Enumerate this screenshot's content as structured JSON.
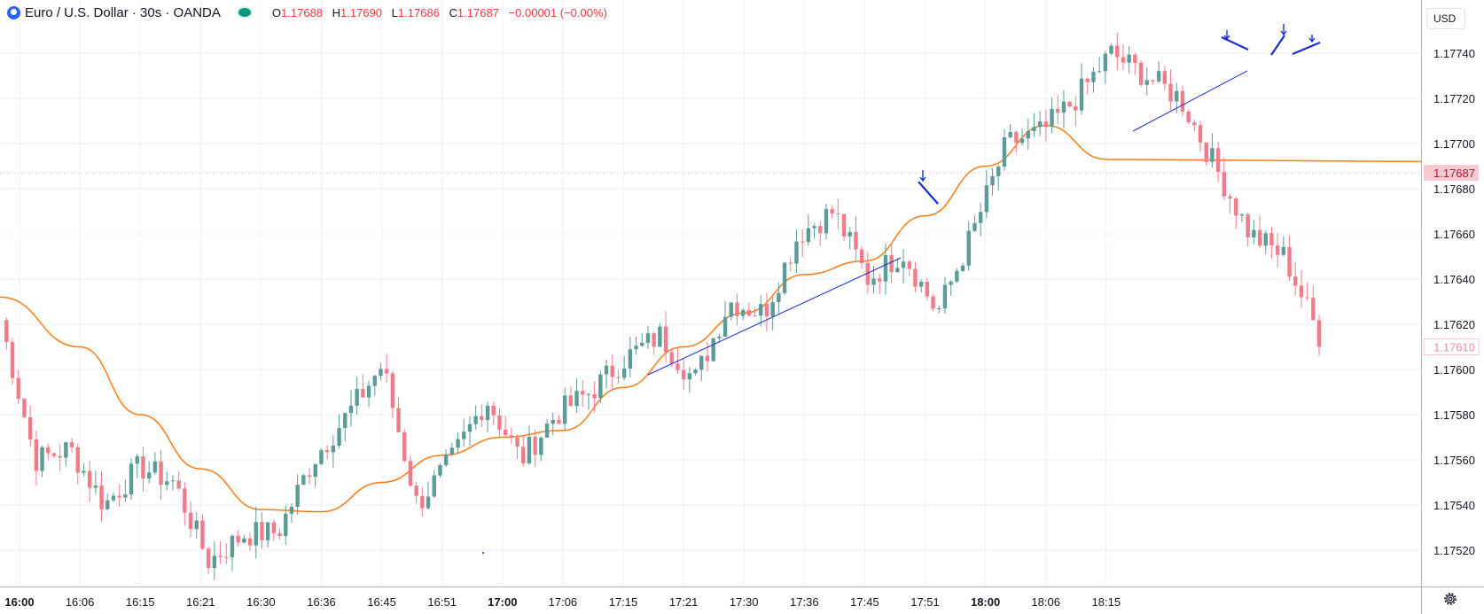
{
  "symbol": {
    "title": "Euro / U.S. Dollar · 30s · OANDA",
    "open_label": "O",
    "open": "1.17688",
    "high_label": "H",
    "high": "1.17690",
    "low_label": "L",
    "low": "1.17686",
    "close_label": "C",
    "close": "1.17687",
    "change": "−0.00001 (−0.00%)"
  },
  "currency_button": "USD",
  "price_axis": {
    "labels": [
      "1.17740",
      "1.17720",
      "1.17700",
      "1.17680",
      "1.17660",
      "1.17640",
      "1.17620",
      "1.17600",
      "1.17580",
      "1.17560",
      "1.17540",
      "1.17520"
    ],
    "current_price": "1.17687",
    "secondary_price": "1.17610"
  },
  "time_axis": {
    "labels": [
      "16:00",
      "16:06",
      "16:15",
      "16:21",
      "16:30",
      "16:36",
      "16:45",
      "16:51",
      "17:00",
      "17:06",
      "17:15",
      "17:21",
      "17:30",
      "17:36",
      "17:45",
      "17:51",
      "18:00",
      "18:06",
      "18:15"
    ],
    "bold_labels": [
      "16:00",
      "17:00",
      "18:00"
    ]
  },
  "colors": {
    "up": "#5b9c96",
    "down": "#f07c8a",
    "ma": "#ff7a12",
    "drawing": "#1a2ecc",
    "grid": "#eef0f4",
    "current_price_tag": "#f7c9d0",
    "current_price_text": "#b2133a"
  },
  "chart_data": {
    "type": "candlestick",
    "timeframe": "30s",
    "ylim": [
      1.175,
      1.1776
    ],
    "x": [
      "16:00",
      "16:06",
      "16:15",
      "16:21",
      "16:30",
      "16:36",
      "16:45",
      "16:51",
      "17:00",
      "17:06",
      "17:15",
      "17:21",
      "17:30",
      "17:36",
      "17:45",
      "17:51",
      "18:00",
      "18:06",
      "18:15"
    ],
    "price_path": [
      1.17622,
      1.1756,
      1.17565,
      1.1754,
      1.17557,
      1.1755,
      1.17515,
      1.17527,
      1.17528,
      1.1756,
      1.1758,
      1.17602,
      1.1754,
      1.1756,
      1.17587,
      1.1756,
      1.1758,
      1.1759,
      1.17605,
      1.17615,
      1.17595,
      1.1763,
      1.17625,
      1.1766,
      1.1767,
      1.1764,
      1.17652,
      1.17625,
      1.1766,
      1.177,
      1.17705,
      1.1772,
      1.1774,
      1.1773,
      1.1772,
      1.1769,
      1.1766,
      1.1765,
      1.17615
    ],
    "moving_average": [
      1.17632,
      1.1761,
      1.1758,
      1.17556,
      1.17538,
      1.17537,
      1.1755,
      1.17562,
      1.1757,
      1.17573,
      1.17592,
      1.1761,
      1.17625,
      1.17642,
      1.17648,
      1.17668,
      1.1769,
      1.17708,
      1.17693
    ],
    "current_price": 1.17687,
    "secondary_price": 1.1761,
    "annotations": [
      "trendline",
      "trendline",
      "arrow",
      "arrow",
      "arrow",
      "arrow"
    ]
  }
}
